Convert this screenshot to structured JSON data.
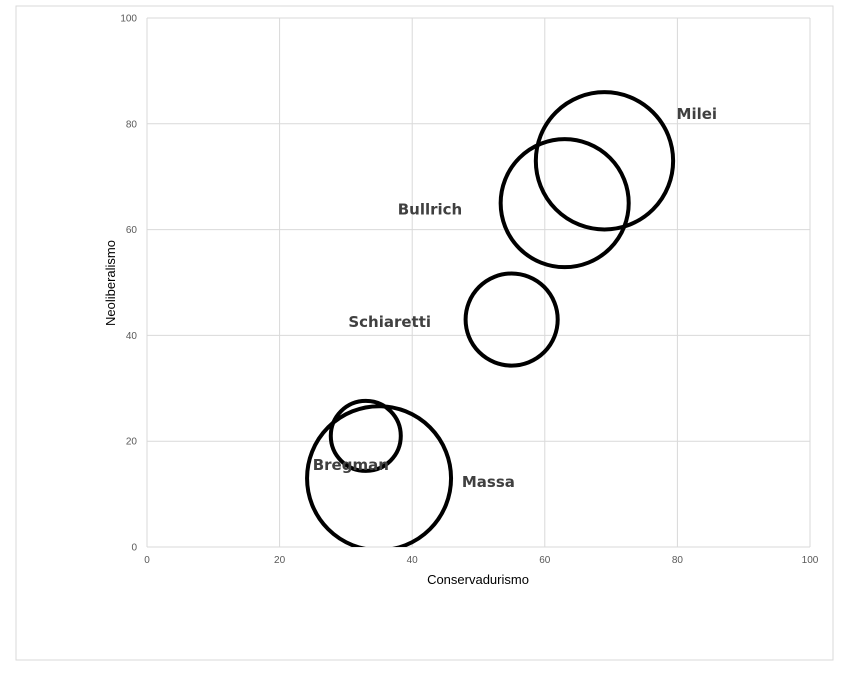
{
  "chart_data": {
    "type": "scatter",
    "subtype": "bubble",
    "xlabel": "Conservadurismo",
    "ylabel": "Neoliberalismo",
    "xlim": [
      0,
      100
    ],
    "ylim": [
      0,
      100
    ],
    "xticks": [
      0,
      20,
      40,
      60,
      80,
      100
    ],
    "yticks": [
      0,
      20,
      40,
      60,
      80,
      100
    ],
    "grid": true,
    "legend": "none",
    "bubble_style": {
      "fill": "none",
      "stroke": "#000000"
    },
    "points": [
      {
        "label": "Milei",
        "x": 69,
        "y": 73,
        "size": 10
      },
      {
        "label": "Bullrich",
        "x": 63,
        "y": 65,
        "size": 8.7
      },
      {
        "label": "Schiaretti",
        "x": 55,
        "y": 43,
        "size": 4.5
      },
      {
        "label": "Massa",
        "x": 35,
        "y": 13,
        "size": 11
      },
      {
        "label": "Bregman",
        "x": 33,
        "y": 21,
        "size": 2.6
      }
    ]
  }
}
